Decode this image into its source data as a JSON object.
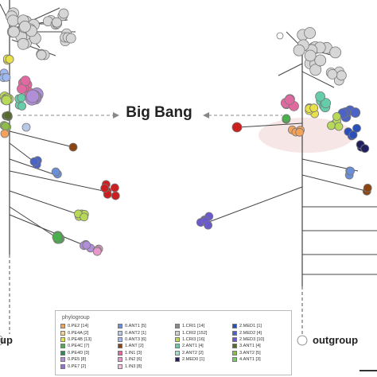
{
  "labels": {
    "big_bang": "Big Bang",
    "outgroup_left": "up",
    "outgroup_right": "outgroup"
  },
  "legend": {
    "title": "phylogroup",
    "items": [
      {
        "label": "0.PE2 [14]",
        "color": "#f2a25a"
      },
      {
        "label": "0.ANT1 [5]",
        "color": "#6a8fd8"
      },
      {
        "label": "1.CRI1 [14]",
        "color": "#8a8a8a"
      },
      {
        "label": "2.MED1 [1]",
        "color": "#2b4fb8"
      },
      {
        "label": "0.PE4A [2]",
        "color": "#f7d08a"
      },
      {
        "label": "0.ANT2 [1]",
        "color": "#b8c8e8"
      },
      {
        "label": "1.CRI2 [152]",
        "color": "#d0d0d0"
      },
      {
        "label": "2.MED2 [4]",
        "color": "#4a63c4"
      },
      {
        "label": "0.PE4B [13]",
        "color": "#e8e04a"
      },
      {
        "label": "0.ANT3 [6]",
        "color": "#a0b8f0"
      },
      {
        "label": "1.CRI3 [16]",
        "color": "#b7d957"
      },
      {
        "label": "2.MED3 [10]",
        "color": "#6a5acd"
      },
      {
        "label": "0.PE4C [7]",
        "color": "#4bb04b"
      },
      {
        "label": "1.ANT [2]",
        "color": "#8b4513"
      },
      {
        "label": "2.ANT1 [4]",
        "color": "#66cdaa"
      },
      {
        "label": "3.ANT1 [4]",
        "color": "#556b2f"
      },
      {
        "label": "0.PE4D [3]",
        "color": "#2e8b57"
      },
      {
        "label": "1.IN1 [3]",
        "color": "#e06aa0"
      },
      {
        "label": "2.ANT2 [2]",
        "color": "#a8e0d0"
      },
      {
        "label": "3.ANT2 [5]",
        "color": "#8fbc4a"
      },
      {
        "label": "0.PE5 [8]",
        "color": "#b08fd8"
      },
      {
        "label": "1.IN2 [6]",
        "color": "#e898c8"
      },
      {
        "label": "2.MED0 [1]",
        "color": "#202060"
      },
      {
        "label": "4.ANT1 [3]",
        "color": "#7cc96b"
      },
      {
        "label": "0.PE7 [2]",
        "color": "#9370db"
      },
      {
        "label": "1.IN3 [8]",
        "color": "#f5c0e0"
      },
      {
        "label": "",
        "color": ""
      },
      {
        "label": "",
        "color": ""
      }
    ]
  },
  "colors": {
    "branch": "#444444",
    "arrow": "#888888",
    "gray_node": "#d6d6d6",
    "gray_stroke": "#777777",
    "blob": "#f7e6e6"
  }
}
